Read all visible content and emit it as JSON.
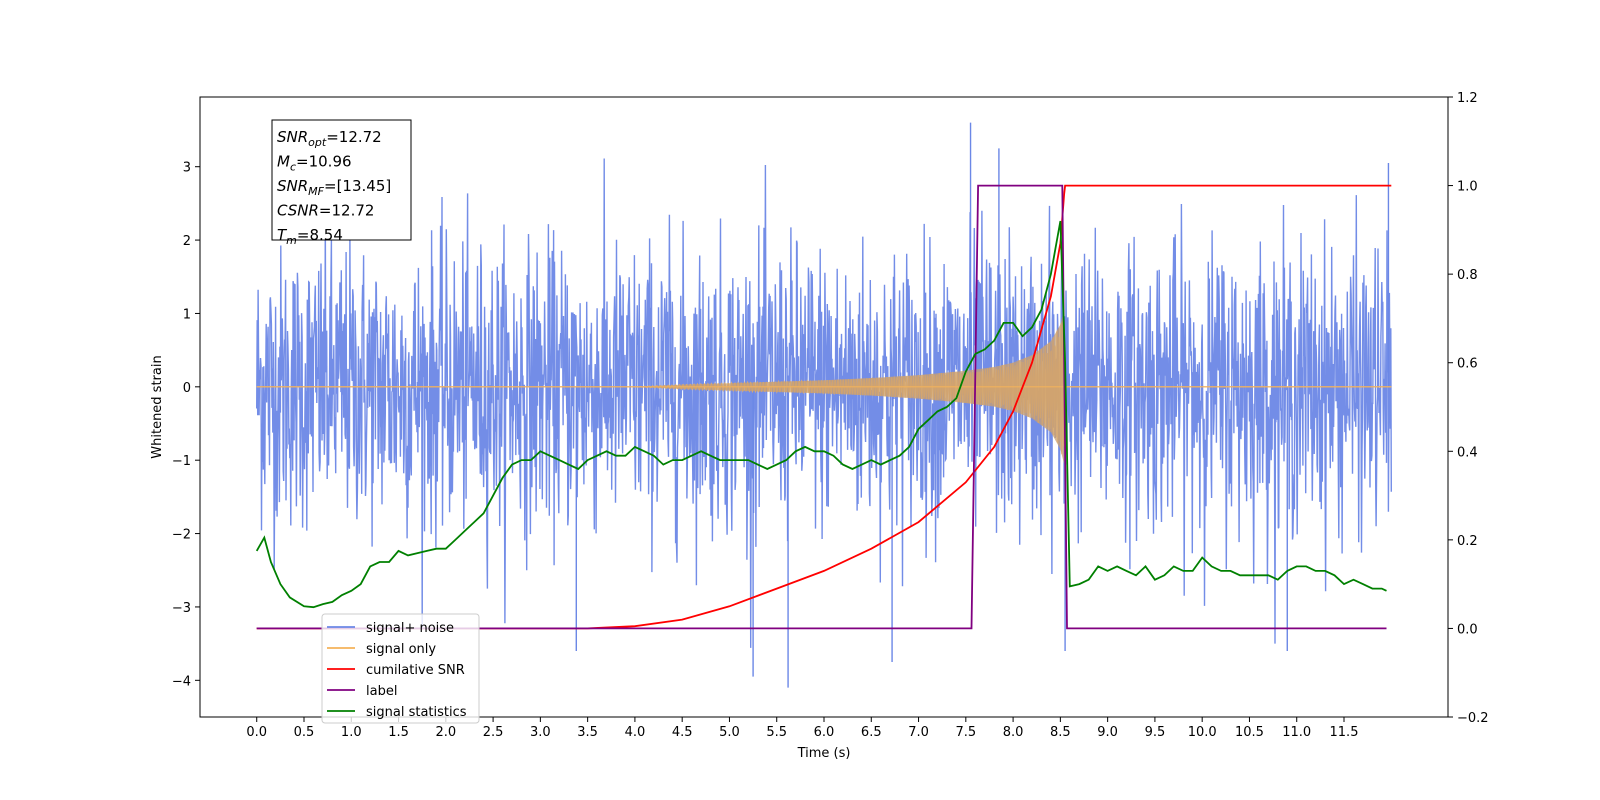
{
  "chart_data": {
    "type": "line",
    "xlabel": "Time (s)",
    "ylabel": "Whitened strain",
    "y2label": "",
    "xlim": [
      -0.6,
      12.6
    ],
    "ylim": [
      -4.5,
      3.95
    ],
    "y2lim": [
      -0.2,
      1.2
    ],
    "x_ticks": [
      0.0,
      0.5,
      1.0,
      1.5,
      2.0,
      2.5,
      3.0,
      3.5,
      4.0,
      4.5,
      5.0,
      5.5,
      6.0,
      6.5,
      7.0,
      7.5,
      8.0,
      8.5,
      9.0,
      9.5,
      10.0,
      10.5,
      11.0,
      11.5
    ],
    "x_tick_labels": [
      "0.0",
      "0.5",
      "1.0",
      "1.5",
      "2.0",
      "2.5",
      "3.0",
      "3.5",
      "4.0",
      "4.5",
      "5.0",
      "5.5",
      "6.0",
      "6.5",
      "7.0",
      "7.5",
      "8.0",
      "8.5",
      "9.0",
      "9.5",
      "10.0",
      "10.5",
      "11.0",
      "11.5"
    ],
    "y_ticks": [
      3,
      2,
      1,
      0,
      -1,
      -2,
      -3,
      -4
    ],
    "y_tick_labels": [
      "3",
      "2",
      "1",
      "0",
      "−1",
      "−2",
      "−3",
      "−4"
    ],
    "y2_ticks": [
      1.2,
      1.0,
      0.8,
      0.6,
      0.4,
      0.2,
      0.0,
      -0.2
    ],
    "y2_tick_labels": [
      "1.2",
      "1.0",
      "0.8",
      "0.6",
      "0.4",
      "0.2",
      "0.0",
      "−0.2"
    ],
    "grid": false,
    "legend_placement": "lower-left",
    "series": [
      {
        "name": "signal+ noise",
        "axis": "left",
        "color": "#6b87e6",
        "description_values": "dense noise, amplitude roughly between -4 and 3.5 across 0 to 12 s",
        "spikes": [
          {
            "x": 3.38,
            "y": -3.6
          },
          {
            "x": 5.25,
            "y": -3.95
          },
          {
            "x": 5.62,
            "y": -4.1
          },
          {
            "x": 6.72,
            "y": -3.75
          },
          {
            "x": 7.55,
            "y": 3.6
          },
          {
            "x": 8.55,
            "y": -3.6
          },
          {
            "x": 10.9,
            "y": -3.6
          },
          {
            "x": 11.97,
            "y": 3.05
          },
          {
            "x": 7.85,
            "y": 3.25
          }
        ]
      },
      {
        "name": "signal only",
        "axis": "left",
        "color": "#f5b35a",
        "envelope": {
          "x": [
            0.0,
            4.0,
            4.5,
            5.0,
            5.5,
            6.0,
            6.5,
            7.0,
            7.5,
            7.8,
            8.0,
            8.2,
            8.4,
            8.5,
            8.54,
            8.56,
            12.0
          ],
          "amplitude": [
            0.0,
            0.0,
            0.03,
            0.05,
            0.07,
            0.09,
            0.12,
            0.16,
            0.22,
            0.27,
            0.33,
            0.43,
            0.62,
            0.85,
            1.05,
            0.0,
            0.0
          ]
        }
      },
      {
        "name": "cumilative SNR",
        "axis": "right",
        "color": "#ff0000",
        "x": [
          0.0,
          3.5,
          4.0,
          4.5,
          5.0,
          5.5,
          6.0,
          6.5,
          7.0,
          7.5,
          7.8,
          8.0,
          8.2,
          8.4,
          8.5,
          8.54,
          8.55,
          12.0
        ],
        "y": [
          0.0,
          0.0,
          0.005,
          0.02,
          0.05,
          0.09,
          0.13,
          0.18,
          0.24,
          0.33,
          0.41,
          0.49,
          0.6,
          0.75,
          0.87,
          0.98,
          1.0,
          1.0
        ]
      },
      {
        "name": "label",
        "axis": "right",
        "color": "#800080",
        "x": [
          0.0,
          7.56,
          7.63,
          8.52,
          8.57,
          11.95
        ],
        "y": [
          0.0,
          0.0,
          1.0,
          1.0,
          0.0,
          0.0
        ]
      },
      {
        "name": "signal statistics",
        "axis": "right",
        "color": "#008000",
        "x": [
          0.0,
          0.08,
          0.15,
          0.25,
          0.35,
          0.5,
          0.6,
          0.7,
          0.8,
          0.9,
          1.0,
          1.1,
          1.2,
          1.3,
          1.4,
          1.5,
          1.6,
          1.7,
          1.8,
          1.9,
          2.0,
          2.1,
          2.2,
          2.3,
          2.4,
          2.5,
          2.6,
          2.7,
          2.8,
          2.9,
          3.0,
          3.1,
          3.2,
          3.3,
          3.4,
          3.5,
          3.6,
          3.7,
          3.8,
          3.9,
          4.0,
          4.1,
          4.2,
          4.3,
          4.4,
          4.5,
          4.6,
          4.7,
          4.8,
          4.9,
          5.0,
          5.1,
          5.2,
          5.3,
          5.4,
          5.5,
          5.6,
          5.7,
          5.8,
          5.9,
          6.0,
          6.1,
          6.2,
          6.3,
          6.4,
          6.5,
          6.6,
          6.7,
          6.8,
          6.9,
          7.0,
          7.1,
          7.2,
          7.3,
          7.4,
          7.5,
          7.6,
          7.7,
          7.8,
          7.9,
          8.0,
          8.1,
          8.2,
          8.3,
          8.4,
          8.45,
          8.5,
          8.55,
          8.6,
          8.7,
          8.8,
          8.9,
          9.0,
          9.1,
          9.2,
          9.3,
          9.4,
          9.5,
          9.6,
          9.7,
          9.8,
          9.9,
          10.0,
          10.1,
          10.2,
          10.3,
          10.4,
          10.5,
          10.6,
          10.7,
          10.8,
          10.9,
          11.0,
          11.1,
          11.2,
          11.3,
          11.4,
          11.5,
          11.6,
          11.7,
          11.8,
          11.9,
          11.95
        ],
        "y": [
          0.175,
          0.205,
          0.15,
          0.1,
          0.07,
          0.05,
          0.048,
          0.055,
          0.06,
          0.075,
          0.085,
          0.1,
          0.14,
          0.15,
          0.15,
          0.175,
          0.165,
          0.17,
          0.175,
          0.18,
          0.18,
          0.2,
          0.22,
          0.24,
          0.26,
          0.3,
          0.34,
          0.37,
          0.38,
          0.38,
          0.4,
          0.39,
          0.38,
          0.37,
          0.36,
          0.38,
          0.39,
          0.4,
          0.39,
          0.39,
          0.41,
          0.4,
          0.39,
          0.37,
          0.38,
          0.38,
          0.39,
          0.4,
          0.39,
          0.38,
          0.38,
          0.38,
          0.38,
          0.37,
          0.36,
          0.37,
          0.38,
          0.4,
          0.41,
          0.4,
          0.4,
          0.39,
          0.37,
          0.36,
          0.37,
          0.38,
          0.37,
          0.38,
          0.39,
          0.41,
          0.45,
          0.47,
          0.49,
          0.5,
          0.52,
          0.58,
          0.62,
          0.63,
          0.65,
          0.69,
          0.69,
          0.66,
          0.68,
          0.72,
          0.8,
          0.86,
          0.92,
          0.6,
          0.095,
          0.1,
          0.11,
          0.14,
          0.13,
          0.14,
          0.13,
          0.12,
          0.14,
          0.11,
          0.12,
          0.14,
          0.13,
          0.13,
          0.16,
          0.14,
          0.13,
          0.13,
          0.12,
          0.12,
          0.12,
          0.12,
          0.11,
          0.13,
          0.14,
          0.14,
          0.13,
          0.13,
          0.12,
          0.1,
          0.11,
          0.1,
          0.09,
          0.09,
          0.085
        ]
      }
    ],
    "info_box": {
      "lines": [
        {
          "name": "SNR",
          "sub": "opt",
          "value": "=12.72"
        },
        {
          "name": "M",
          "sub": "c",
          "value": "=10.96"
        },
        {
          "name": "SNR",
          "sub": "MF",
          "value": "=[13.45]"
        },
        {
          "name": "CSNR",
          "sub": "",
          "value": "=12.72"
        },
        {
          "name": "T",
          "sub": "m",
          "value": "=8.54"
        }
      ]
    },
    "legend": {
      "entries": [
        {
          "label": "signal+ noise",
          "color": "#6b87e6"
        },
        {
          "label": "signal only",
          "color": "#f5b35a"
        },
        {
          "label": "cumilative SNR",
          "color": "#ff0000"
        },
        {
          "label": "label",
          "color": "#800080"
        },
        {
          "label": "signal statistics",
          "color": "#008000"
        }
      ]
    }
  }
}
